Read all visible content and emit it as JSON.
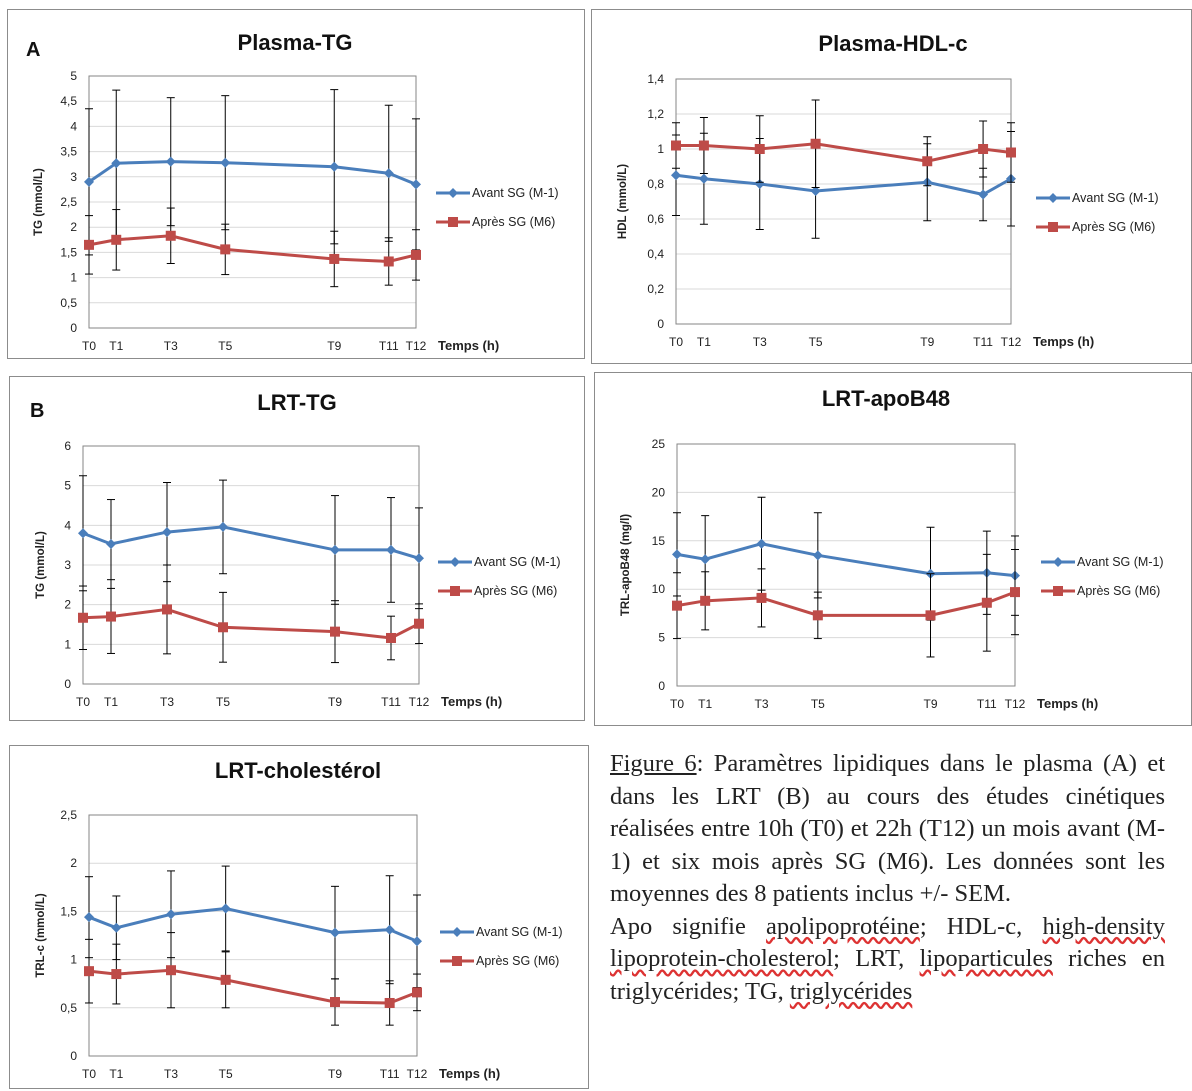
{
  "legend": {
    "before": "Avant SG (M-1)",
    "after": "Après SG (M6)"
  },
  "xaxis_title": "Temps (h)",
  "colors": {
    "before": "#4a7ebb",
    "after": "#be4b48",
    "grid": "#d9d9d9",
    "axis": "#868686"
  },
  "chart_data": [
    {
      "id": "plasma-tg",
      "type": "line",
      "panel_letter": "A",
      "title": "Plasma-TG",
      "ylabel": "TG (mmol/L)",
      "ylim": [
        0,
        5
      ],
      "yticks": [
        "0",
        "0,5",
        "1",
        "1,5",
        "2",
        "2,5",
        "3",
        "3,5",
        "4",
        "4,5",
        "5"
      ],
      "x": [
        0,
        1,
        3,
        5,
        9,
        11,
        12
      ],
      "x_tick_labels": [
        "T0",
        "T1",
        "T3",
        "T5",
        "T9",
        "T11",
        "T12"
      ],
      "series": [
        {
          "name": "Avant SG (M-1)",
          "values": [
            2.9,
            3.27,
            3.3,
            3.28,
            3.2,
            3.07,
            2.85
          ],
          "err": [
            1.45,
            1.45,
            1.27,
            1.33,
            1.53,
            1.35,
            1.3
          ]
        },
        {
          "name": "Après SG (M6)",
          "values": [
            1.65,
            1.75,
            1.83,
            1.56,
            1.37,
            1.32,
            1.45
          ],
          "err": [
            0.58,
            0.6,
            0.55,
            0.5,
            0.55,
            0.47,
            0.5
          ]
        }
      ]
    },
    {
      "id": "plasma-hdl",
      "type": "line",
      "panel_letter": "",
      "title": "Plasma-HDL-c",
      "ylabel": "HDL (mmol/L)",
      "ylim": [
        0,
        1.4
      ],
      "yticks": [
        "0",
        "0,2",
        "0,4",
        "0,6",
        "0,8",
        "1",
        "1,2",
        "1,4"
      ],
      "x": [
        0,
        1,
        3,
        5,
        9,
        11,
        12
      ],
      "x_tick_labels": [
        "T0",
        "T1",
        "T3",
        "T5",
        "T9",
        "T11",
        "T12"
      ],
      "series": [
        {
          "name": "Avant SG (M-1)",
          "values": [
            0.85,
            0.83,
            0.8,
            0.76,
            0.81,
            0.74,
            0.83
          ],
          "err": [
            0.23,
            0.26,
            0.26,
            0.27,
            0.22,
            0.15,
            0.27
          ]
        },
        {
          "name": "Après SG (M6)",
          "values": [
            1.02,
            1.02,
            1.0,
            1.03,
            0.93,
            1.0,
            0.98
          ],
          "err": [
            0.13,
            0.16,
            0.19,
            0.25,
            0.14,
            0.16,
            0.17
          ]
        }
      ]
    },
    {
      "id": "lrt-tg",
      "type": "line",
      "panel_letter": "B",
      "title": "LRT-TG",
      "ylabel": "TG (mmol/L)",
      "ylim": [
        0,
        6
      ],
      "yticks": [
        "0",
        "1",
        "2",
        "3",
        "4",
        "5",
        "6"
      ],
      "x": [
        0,
        1,
        3,
        5,
        9,
        11,
        12
      ],
      "x_tick_labels": [
        "T0",
        "T1",
        "T3",
        "T5",
        "T9",
        "T11",
        "T12"
      ],
      "series": [
        {
          "name": "Avant SG (M-1)",
          "values": [
            3.8,
            3.53,
            3.83,
            3.96,
            3.38,
            3.38,
            3.17
          ],
          "err": [
            1.45,
            1.12,
            1.25,
            1.18,
            1.37,
            1.32,
            1.27
          ]
        },
        {
          "name": "Après SG (M6)",
          "values": [
            1.67,
            1.7,
            1.88,
            1.43,
            1.32,
            1.16,
            1.52
          ],
          "err": [
            0.8,
            0.93,
            1.12,
            0.88,
            0.78,
            0.55,
            0.5
          ]
        }
      ]
    },
    {
      "id": "lrt-apob48",
      "type": "line",
      "panel_letter": "",
      "title": "LRT-apoB48",
      "ylabel": "TRL-apoB48  (mg/l)",
      "ylim": [
        0,
        25
      ],
      "yticks": [
        "0",
        "5",
        "10",
        "15",
        "20",
        "25"
      ],
      "x": [
        0,
        1,
        3,
        5,
        9,
        11,
        12
      ],
      "x_tick_labels": [
        "T0",
        "T1",
        "T3",
        "T5",
        "T9",
        "T11",
        "T12"
      ],
      "series": [
        {
          "name": "Avant SG (M-1)",
          "values": [
            13.6,
            13.1,
            14.7,
            13.5,
            11.6,
            11.7,
            11.4
          ],
          "err": [
            4.3,
            4.5,
            4.8,
            4.4,
            4.8,
            4.3,
            4.1
          ]
        },
        {
          "name": "Après SG (M6)",
          "values": [
            8.3,
            8.8,
            9.1,
            7.3,
            7.3,
            8.6,
            9.7
          ],
          "err": [
            3.4,
            3.0,
            3.0,
            2.4,
            4.3,
            5.0,
            4.4
          ]
        }
      ]
    },
    {
      "id": "lrt-chol",
      "type": "line",
      "panel_letter": "",
      "title": "LRT-cholestérol",
      "ylabel": "TRL-c (mmol/L)",
      "ylim": [
        0,
        2.5
      ],
      "yticks": [
        "0",
        "0,5",
        "1",
        "1,5",
        "2",
        "2,5"
      ],
      "x": [
        0,
        1,
        3,
        5,
        9,
        11,
        12
      ],
      "x_tick_labels": [
        "T0",
        "T1",
        "T3",
        "T5",
        "T9",
        "T11",
        "T12"
      ],
      "series": [
        {
          "name": "Avant SG (M-1)",
          "values": [
            1.44,
            1.33,
            1.47,
            1.53,
            1.28,
            1.31,
            1.19
          ],
          "err": [
            0.42,
            0.33,
            0.45,
            0.44,
            0.48,
            0.56,
            0.48
          ]
        },
        {
          "name": "Après SG (M6)",
          "values": [
            0.88,
            0.85,
            0.89,
            0.79,
            0.56,
            0.55,
            0.66
          ],
          "err": [
            0.33,
            0.31,
            0.39,
            0.29,
            0.24,
            0.23,
            0.19
          ]
        }
      ]
    }
  ],
  "caption": {
    "figure_label": "Figure 6",
    "text1": ": Paramètres lipidiques dans le plasma (A) et dans les LRT (B) au cours des études cinétiques réalisées entre 10h (T0) et 22h (T12) un mois avant (M-1) et six mois après SG (M6). Les données sont les moyennes des 8 patients inclus +/- SEM.",
    "text2_a": "Apo signifie ",
    "w_apolipoproteine": "apolipoprotéine",
    "text2_b": "; HDL-c, ",
    "w_high": "high-density",
    "text2_c": " ",
    "w_lipoprotein": "lipoprotein-cholesterol",
    "text2_d": "; LRT, ",
    "w_lipoparticules": "lipoparticules",
    "text2_e": " riches en triglycérides; TG, ",
    "w_triglycerides": "triglycérides"
  }
}
